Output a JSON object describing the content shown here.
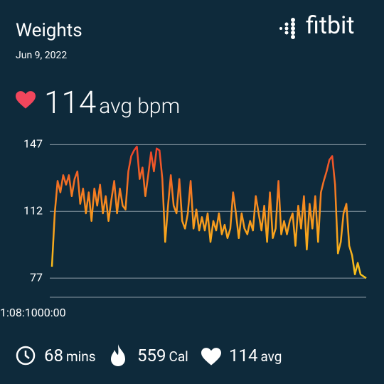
{
  "header": {
    "title": "Weights",
    "date": "Jun 9, 2022",
    "logo": "fitbit"
  },
  "summary": {
    "value": 114,
    "unit": "avg bpm"
  },
  "chart_data": {
    "type": "line",
    "values": [
      83,
      111,
      128,
      122,
      131,
      126,
      131,
      120,
      129,
      133,
      116,
      124,
      111,
      122,
      107,
      124,
      115,
      126,
      111,
      120,
      107,
      118,
      128,
      111,
      124,
      115,
      113,
      133,
      141,
      144,
      146,
      129,
      135,
      120,
      131,
      143,
      133,
      145,
      144,
      129,
      96,
      115,
      131,
      115,
      111,
      129,
      107,
      103,
      111,
      128,
      103,
      113,
      102,
      109,
      102,
      111,
      96,
      107,
      102,
      111,
      100,
      105,
      98,
      103,
      122,
      111,
      98,
      111,
      103,
      100,
      107,
      102,
      120,
      111,
      102,
      115,
      96,
      122,
      98,
      103,
      128,
      100,
      107,
      100,
      107,
      111,
      94,
      115,
      103,
      120,
      92,
      116,
      103,
      120,
      96,
      122,
      128,
      133,
      139,
      141,
      126,
      90,
      96,
      111,
      116,
      94,
      89,
      79,
      85,
      79,
      78,
      77
    ],
    "ylim": [
      67,
      152
    ],
    "yticks": [
      77,
      112,
      147
    ],
    "x_labels": [
      "1:08:10",
      "00:00"
    ],
    "grid": true
  },
  "stats": [
    {
      "value": 68,
      "unit": "mins"
    },
    {
      "value": 559,
      "unit": "Cal"
    },
    {
      "value": 114,
      "unit": "avg"
    }
  ]
}
